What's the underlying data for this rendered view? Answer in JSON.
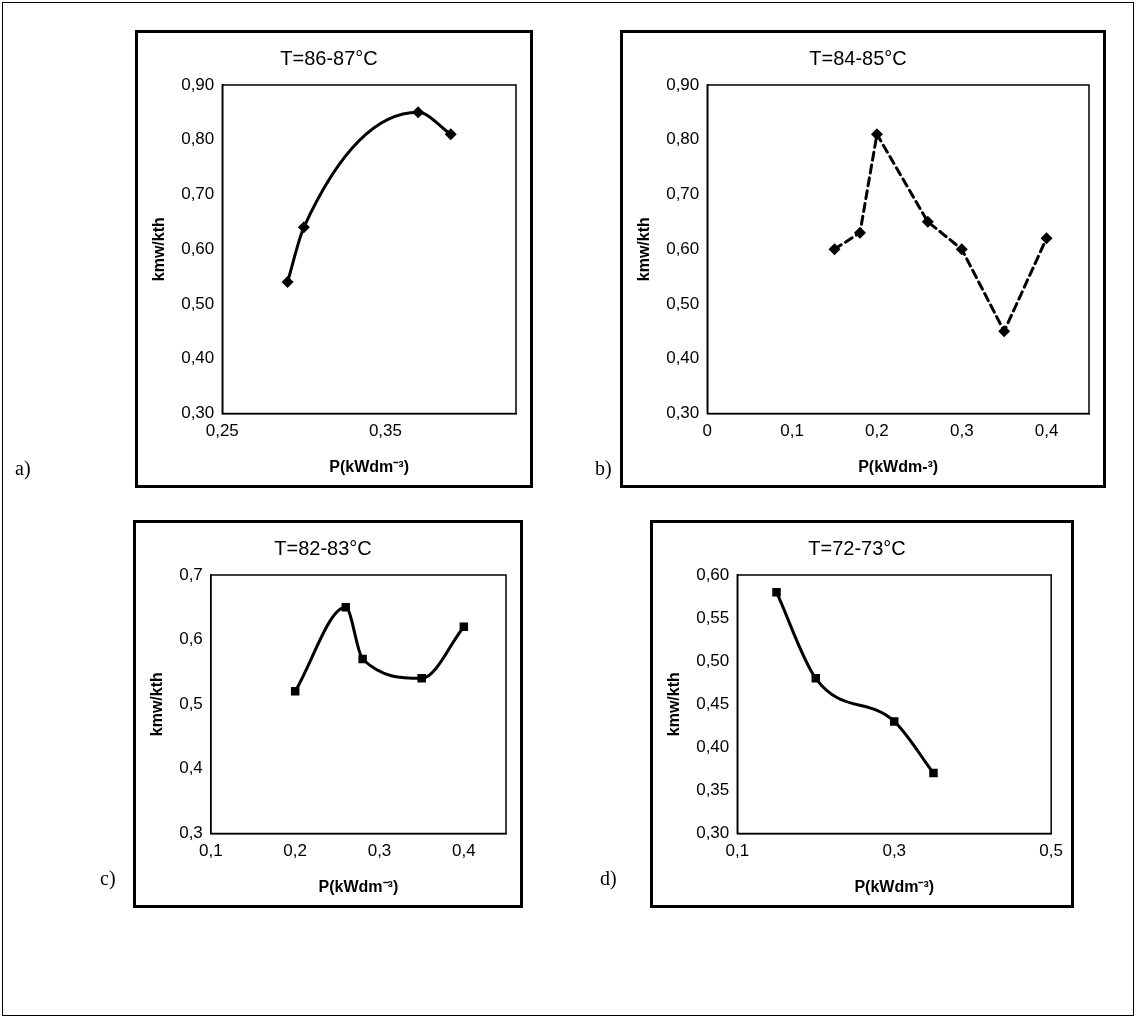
{
  "chart_data": [
    {
      "type": "line",
      "title": "T=86-87°C",
      "xlabel": "P(kWdm⁻³)",
      "ylabel": "kmw/kth",
      "annotations": [
        "a)"
      ],
      "marker": "diamond",
      "line_style": "solid",
      "grid": false,
      "legend": false,
      "series": [
        {
          "color": "#000000",
          "x": [
            0.29,
            0.3,
            0.37,
            0.39
          ],
          "values": [
            0.54,
            0.64,
            0.85,
            0.81
          ]
        }
      ],
      "xlim": [
        0.25,
        0.43
      ],
      "xticks": [
        {
          "value": 0.25,
          "label": "0,25"
        },
        {
          "value": 0.35,
          "label": "0,35"
        }
      ],
      "ylim": [
        0.3,
        0.9
      ],
      "yticks": [
        {
          "value": 0.3,
          "label": "0,30"
        },
        {
          "value": 0.4,
          "label": "0,40"
        },
        {
          "value": 0.5,
          "label": "0,50"
        },
        {
          "value": 0.6,
          "label": "0,60"
        },
        {
          "value": 0.7,
          "label": "0,70"
        },
        {
          "value": 0.8,
          "label": "0,80"
        },
        {
          "value": 0.9,
          "label": "0,90"
        }
      ]
    },
    {
      "type": "line",
      "title": "T=84-85°C",
      "xlabel": "P(kWdm-³)",
      "ylabel": "kmw/kth",
      "annotations": [
        "b)"
      ],
      "marker": "diamond",
      "line_style": "dashed",
      "grid": false,
      "legend": false,
      "series": [
        {
          "color": "#000000",
          "x": [
            0.15,
            0.18,
            0.2,
            0.26,
            0.3,
            0.35,
            0.4
          ],
          "values": [
            0.6,
            0.63,
            0.81,
            0.65,
            0.6,
            0.45,
            0.62
          ]
        }
      ],
      "xlim": [
        0,
        0.45
      ],
      "xticks": [
        0,
        {
          "value": 0.1,
          "label": "0,1"
        },
        {
          "value": 0.2,
          "label": "0,2"
        },
        {
          "value": 0.3,
          "label": "0,3"
        },
        {
          "value": 0.4,
          "label": "0,4"
        }
      ],
      "ylim": [
        0.3,
        0.9
      ],
      "yticks": [
        {
          "value": 0.3,
          "label": "0,30"
        },
        {
          "value": 0.4,
          "label": "0,40"
        },
        {
          "value": 0.5,
          "label": "0,50"
        },
        {
          "value": 0.6,
          "label": "0,60"
        },
        {
          "value": 0.7,
          "label": "0,70"
        },
        {
          "value": 0.8,
          "label": "0,80"
        },
        {
          "value": 0.9,
          "label": "0,90"
        }
      ]
    },
    {
      "type": "line",
      "title": "T=82-83°C",
      "xlabel": "P(kWdm⁻³)",
      "ylabel": "kmw/kth",
      "annotations": [
        "c)"
      ],
      "marker": "square",
      "line_style": "solid",
      "grid": false,
      "legend": false,
      "series": [
        {
          "color": "#000000",
          "x": [
            0.2,
            0.26,
            0.28,
            0.35,
            0.4
          ],
          "values": [
            0.52,
            0.65,
            0.57,
            0.54,
            0.62
          ]
        }
      ],
      "xlim": [
        0.1,
        0.45
      ],
      "xticks": [
        {
          "value": 0.1,
          "label": "0,1"
        },
        {
          "value": 0.2,
          "label": "0,2"
        },
        {
          "value": 0.3,
          "label": "0,3"
        },
        {
          "value": 0.4,
          "label": "0,4"
        }
      ],
      "ylim": [
        0.3,
        0.7
      ],
      "yticks": [
        {
          "value": 0.3,
          "label": "0,3"
        },
        {
          "value": 0.4,
          "label": "0,4"
        },
        {
          "value": 0.5,
          "label": "0,5"
        },
        {
          "value": 0.6,
          "label": "0,6"
        },
        {
          "value": 0.7,
          "label": "0,7"
        }
      ]
    },
    {
      "type": "line",
      "title": "T=72-73°C",
      "xlabel": "P(kWdm⁻³)",
      "ylabel": "kmw/kth",
      "annotations": [
        "d)"
      ],
      "marker": "square",
      "line_style": "solid",
      "grid": false,
      "legend": false,
      "series": [
        {
          "color": "#000000",
          "x": [
            0.15,
            0.2,
            0.3,
            0.35
          ],
          "values": [
            0.58,
            0.48,
            0.43,
            0.37
          ]
        }
      ],
      "xlim": [
        0.1,
        0.5
      ],
      "xticks": [
        {
          "value": 0.1,
          "label": "0,1"
        },
        {
          "value": 0.3,
          "label": "0,3"
        },
        {
          "value": 0.5,
          "label": "0,5"
        }
      ],
      "ylim": [
        0.3,
        0.6
      ],
      "yticks": [
        {
          "value": 0.3,
          "label": "0,30"
        },
        {
          "value": 0.35,
          "label": "0,35"
        },
        {
          "value": 0.4,
          "label": "0,40"
        },
        {
          "value": 0.45,
          "label": "0,45"
        },
        {
          "value": 0.5,
          "label": "0,50"
        },
        {
          "value": 0.55,
          "label": "0,55"
        },
        {
          "value": 0.6,
          "label": "0,60"
        }
      ]
    }
  ]
}
